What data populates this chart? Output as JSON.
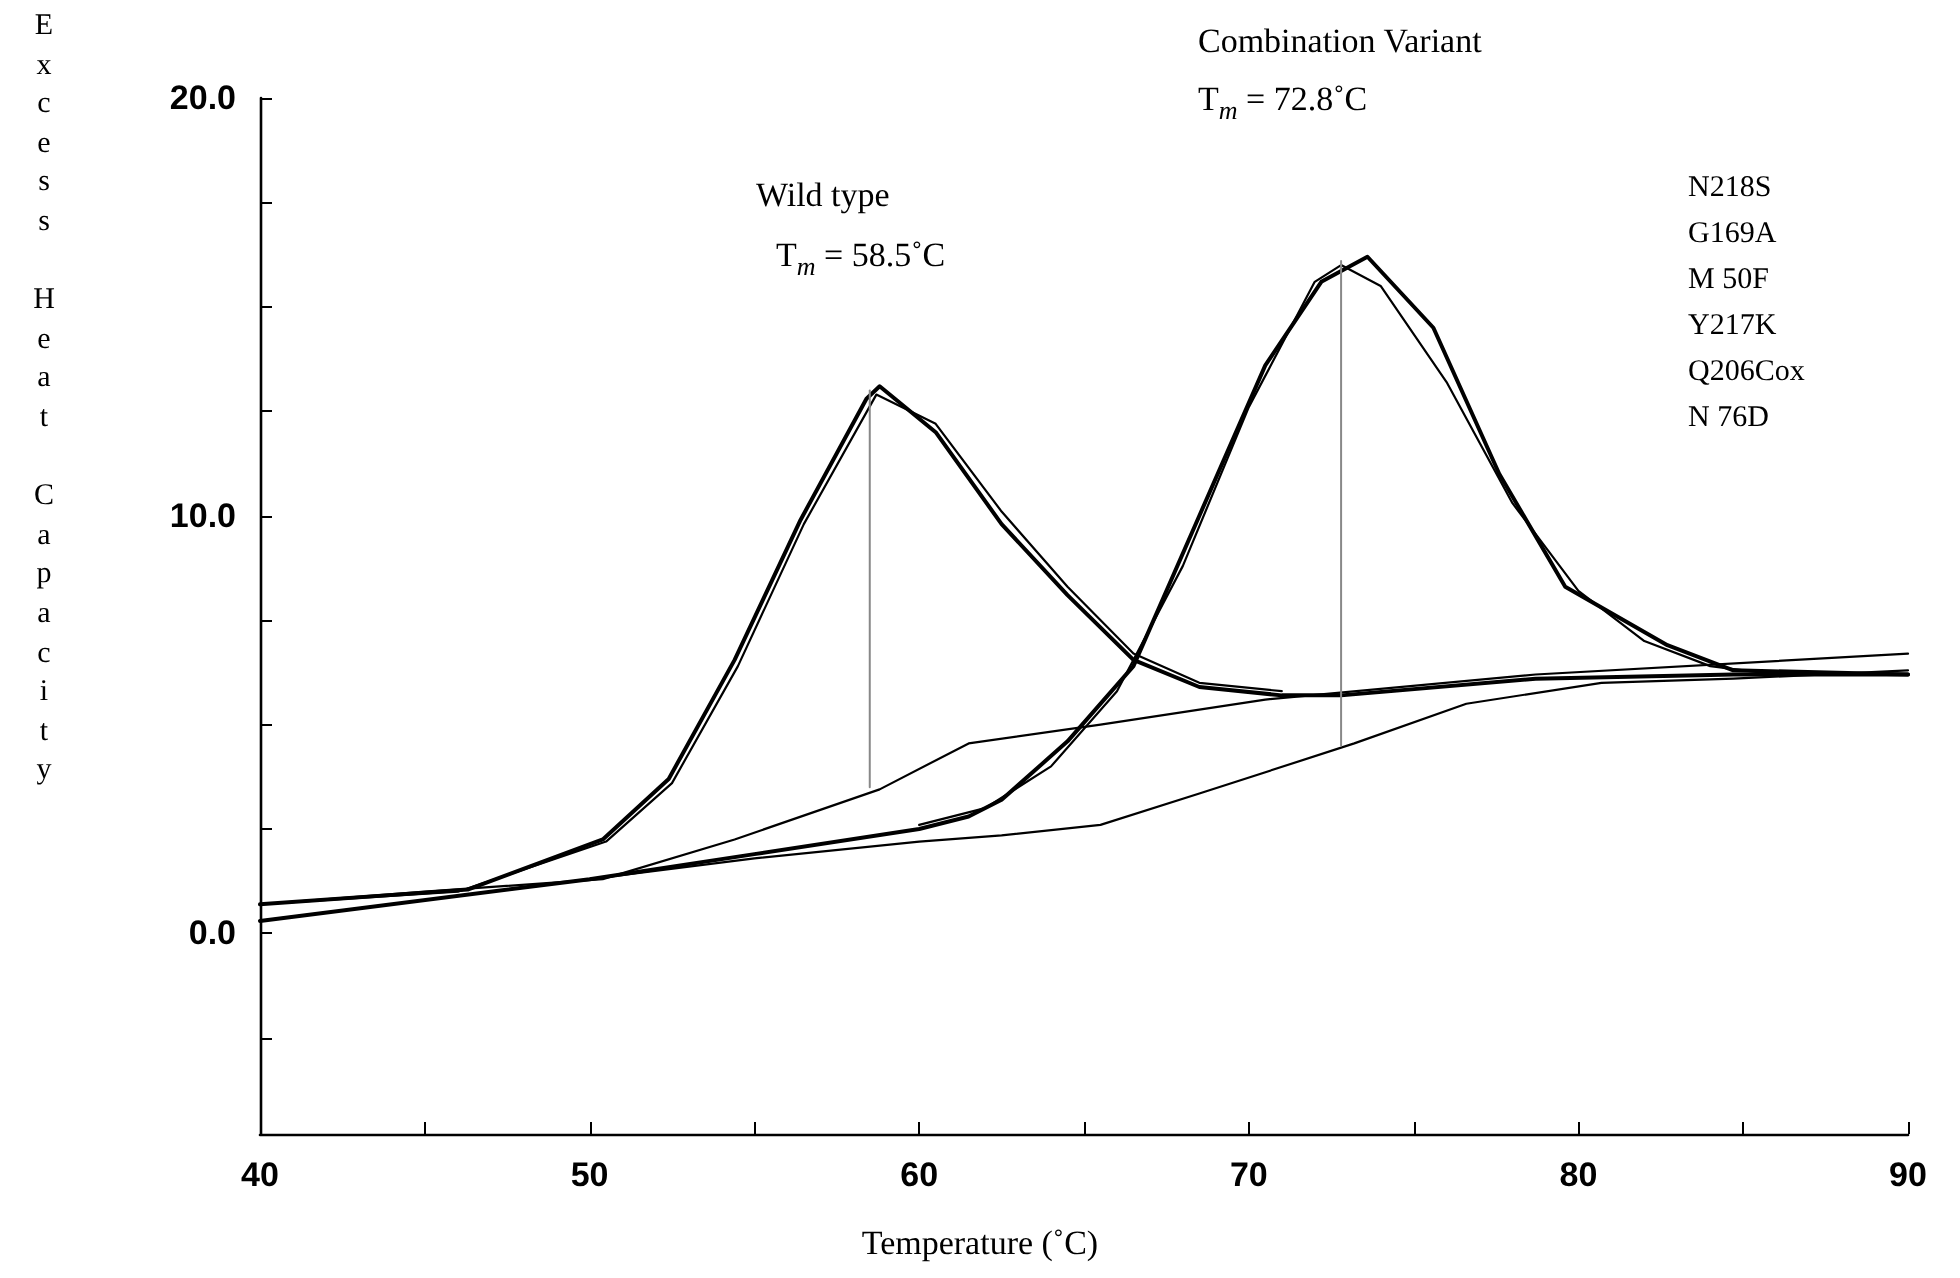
{
  "chart_data": {
    "type": "line",
    "xlabel": "Temperature (˚C)",
    "ylabel": "Excess Heat Capacity",
    "marker": "none",
    "xlim": [
      40,
      90
    ],
    "ylim": [
      -4.8,
      20
    ],
    "xticks": [
      40,
      {
        "value": 45,
        "label": null
      },
      50,
      {
        "value": 55,
        "label": null
      },
      60,
      {
        "value": 65,
        "label": null
      },
      70,
      {
        "value": 75,
        "label": null
      },
      80,
      {
        "value": 85,
        "label": null
      },
      90
    ],
    "yticks": [
      {
        "value": -2.5,
        "label": null
      },
      {
        "value": 0,
        "label": "0.0"
      },
      {
        "value": 2.5,
        "label": null
      },
      {
        "value": 5,
        "label": null
      },
      {
        "value": 7.5,
        "label": null
      },
      {
        "value": 10,
        "label": "10.0"
      },
      {
        "value": 12.5,
        "label": null
      },
      {
        "value": 15,
        "label": null
      },
      {
        "value": 17.5,
        "label": null
      },
      {
        "value": 20,
        "label": "20.0"
      }
    ],
    "annotations": [
      "Wild type",
      "T$_{m}$ = 58.5˚C",
      "Combination Variant",
      "T$_{m}$ = 72.8˚C",
      "N218S",
      "G169A",
      "M 50F",
      "Y217K",
      "Q206Cox",
      "N 76D"
    ],
    "series": [
      {
        "color": "#000000",
        "x": [
          40,
          46.3,
          50.4,
          52.4,
          54.4,
          56.4,
          58.4,
          58.8,
          60.5,
          62.5,
          64.5,
          66.5,
          68.5,
          71,
          72.8,
          78.7,
          84.7,
          90
        ],
        "values": [
          0.7,
          1.05,
          2.25,
          3.7,
          6.55,
          9.9,
          12.8,
          13.1,
          12.0,
          9.8,
          8.1,
          6.55,
          5.9,
          5.7,
          5.7,
          6.1,
          6.2,
          6.2
        ]
      },
      {
        "color": "#000000",
        "x": [
          40,
          46,
          50.5,
          52.5,
          54.5,
          56.5,
          58.7,
          60.5,
          62.5,
          64.5,
          66.5,
          68.5,
          71
        ],
        "values": [
          0.7,
          1.0,
          2.2,
          3.6,
          6.4,
          9.8,
          12.9,
          12.2,
          10.1,
          8.3,
          6.7,
          6.0,
          5.8
        ]
      },
      {
        "color": "#000000",
        "x": [
          40,
          45,
          50.4,
          54.4,
          58.8,
          61.5,
          65.5,
          70.5,
          78.7,
          90
        ],
        "values": [
          0.7,
          1.0,
          1.3,
          2.25,
          3.45,
          4.55,
          5.0,
          5.6,
          6.2,
          6.7
        ]
      },
      {
        "color": "#000000",
        "x": [
          40,
          50,
          55,
          60,
          61.5,
          62.5,
          64.5,
          66.5,
          68.5,
          70.5,
          72.2,
          73.6,
          75.6,
          77.6,
          79.6,
          82.7,
          84.7,
          90
        ],
        "values": [
          0.3,
          1.3,
          1.9,
          2.5,
          2.8,
          3.2,
          4.6,
          6.4,
          10.0,
          13.6,
          15.6,
          16.2,
          14.5,
          11.0,
          8.3,
          6.9,
          6.3,
          6.2
        ]
      },
      {
        "color": "#000000",
        "x": [
          60,
          62,
          64,
          66,
          68,
          70,
          72,
          72.8,
          74,
          76,
          78,
          80,
          82,
          84,
          86,
          90
        ],
        "values": [
          2.6,
          3.0,
          4.0,
          5.8,
          8.8,
          12.6,
          15.6,
          16.0,
          15.5,
          13.2,
          10.3,
          8.2,
          7.0,
          6.4,
          6.2,
          6.2
        ]
      },
      {
        "color": "#000000",
        "x": [
          40,
          50,
          55,
          60,
          62.5,
          65.5,
          68.5,
          73.2,
          76.6,
          80.7,
          84.7,
          90
        ],
        "values": [
          0.3,
          1.3,
          1.8,
          2.2,
          2.35,
          2.6,
          3.35,
          4.55,
          5.5,
          6.0,
          6.1,
          6.3
        ]
      },
      {
        "color": "#888888",
        "x": [
          58.5,
          58.5
        ],
        "values": [
          3.5,
          13.0
        ]
      },
      {
        "color": "#888888",
        "x": [
          72.8,
          72.8
        ],
        "values": [
          4.5,
          16.1
        ]
      }
    ]
  }
}
